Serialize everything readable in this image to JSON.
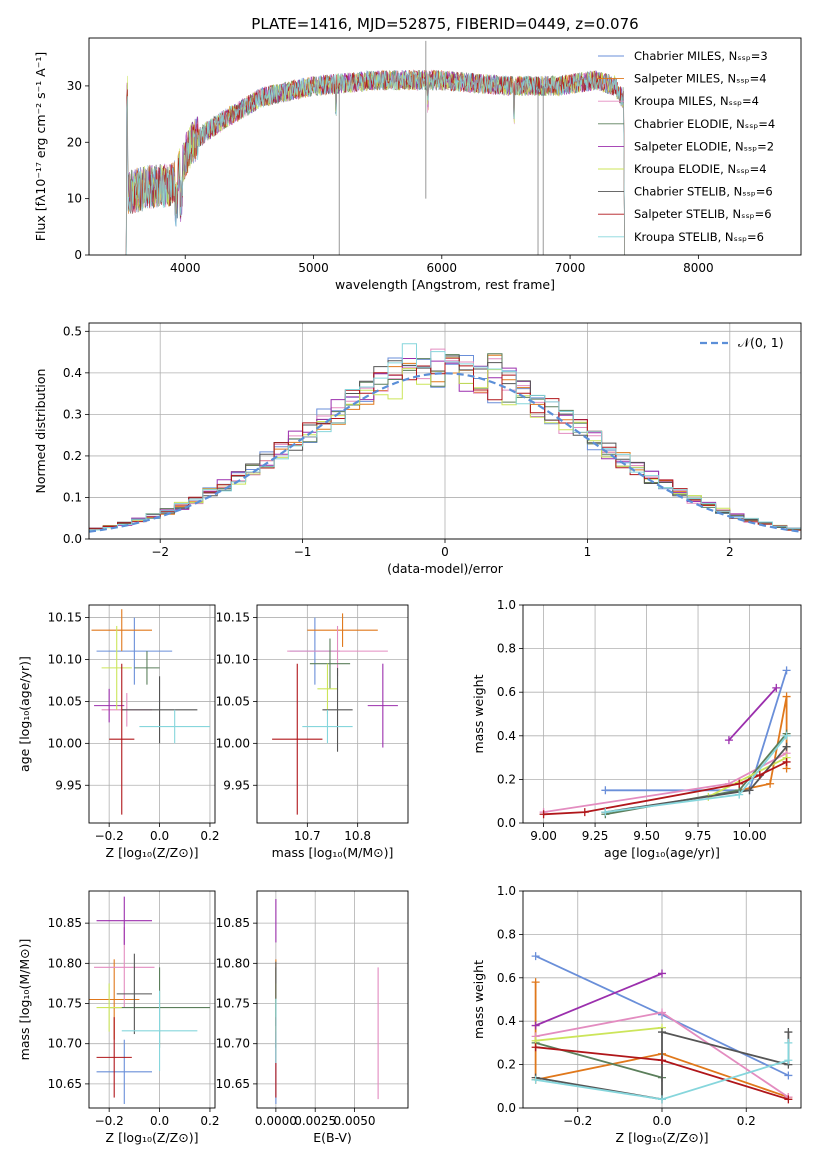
{
  "palette": [
    "#6a8fd9",
    "#e0781b",
    "#e38cc0",
    "#5b7f5b",
    "#9b2fad",
    "#cce55a",
    "#555555",
    "#b0161a",
    "#86d6dc"
  ],
  "chart_data": [
    {
      "id": "spectrum",
      "type": "line",
      "title": "PLATE=1416, MJD=52875, FIBERID=0449, z=0.076",
      "xlabel": "wavelength [Angstrom, rest frame]",
      "ylabel": "Flux [fλ10⁻¹⁷ erg cm⁻² s⁻¹ A⁻¹]",
      "xlim": [
        3250,
        8800
      ],
      "ylim": [
        0,
        38.5
      ],
      "xticks": [
        "4000",
        "5000",
        "6000",
        "7000",
        "8000"
      ],
      "yticks": [
        "0",
        "10",
        "20",
        "30"
      ],
      "legend_position": "upper-right",
      "legend": [
        "Chabrier MILES, Nₛₛₚ=3",
        "Salpeter MILES, Nₛₛₚ=4",
        "Kroupa MILES, Nₛₛₚ=4",
        "Chabrier ELODIE, Nₛₛₚ=4",
        "Salpeter ELODIE, Nₛₛₚ=2",
        "Kroupa ELODIE, Nₛₛₚ=4",
        "Chabrier STELIB, Nₛₛₚ=6",
        "Salpeter STELIB, Nₛₛₚ=6",
        "Kroupa STELIB, Nₛₛₚ=6"
      ],
      "continuum": [
        [
          3550,
          11
        ],
        [
          3700,
          12
        ],
        [
          3900,
          12.5
        ],
        [
          4050,
          20
        ],
        [
          4300,
          24
        ],
        [
          4600,
          28
        ],
        [
          5000,
          30
        ],
        [
          5500,
          31
        ],
        [
          6000,
          31
        ],
        [
          6500,
          30
        ],
        [
          6900,
          30
        ],
        [
          7200,
          31
        ],
        [
          7350,
          30
        ],
        [
          7400,
          28
        ]
      ]
    },
    {
      "id": "residuals",
      "type": "histogram",
      "xlabel": "(data-model)/error",
      "ylabel": "Normed distribution",
      "xlim": [
        -2.5,
        2.5
      ],
      "ylim": [
        0,
        0.52
      ],
      "xticks": [
        "−2",
        "−1",
        "0",
        "1",
        "2"
      ],
      "yticks": [
        "0.0",
        "0.1",
        "0.2",
        "0.3",
        "0.4",
        "0.5"
      ],
      "legend": [
        "𝒩(0, 1)"
      ],
      "legend_position": "upper-right",
      "bin_width": 0.1
    },
    {
      "id": "age_vs_Z",
      "type": "errorbar",
      "xlabel": "Z [log₁₀(Z/Z⊙)]",
      "ylabel": "age  [log₁₀(age/yr)]",
      "xlim": [
        -0.28,
        0.22
      ],
      "ylim": [
        9.905,
        10.165
      ],
      "xticks": [
        "−0.2",
        "0.0",
        "0.2"
      ],
      "yticks": [
        "9.95",
        "10.00",
        "10.05",
        "10.10",
        "10.15"
      ],
      "points": [
        {
          "x": -0.1,
          "y": 10.11,
          "xerr": 0.15,
          "yerr": 0.04
        },
        {
          "x": -0.15,
          "y": 10.135,
          "xerr": 0.12,
          "yerr": 0.025
        },
        {
          "x": -0.13,
          "y": 10.04,
          "xerr": 0.1,
          "yerr": 0.02
        },
        {
          "x": -0.05,
          "y": 10.09,
          "xerr": 0.05,
          "yerr": 0.02
        },
        {
          "x": -0.2,
          "y": 10.045,
          "xerr": 0.06,
          "yerr": 0.02
        },
        {
          "x": -0.17,
          "y": 10.09,
          "xerr": 0.06,
          "yerr": 0.05
        },
        {
          "x": 0.0,
          "y": 10.04,
          "xerr": 0.15,
          "yerr": 0.04
        },
        {
          "x": -0.15,
          "y": 10.005,
          "xerr": 0.05,
          "yerr": 0.09
        },
        {
          "x": 0.06,
          "y": 10.02,
          "xerr": 0.14,
          "yerr": 0.02
        }
      ]
    },
    {
      "id": "age_vs_mass",
      "type": "errorbar",
      "xlabel": "mass [log₁₀(M/M⊙)]",
      "ylabel": "",
      "xlim": [
        10.6,
        10.9
      ],
      "ylim": [
        9.905,
        10.165
      ],
      "xticks": [
        "10.7",
        "10.8"
      ],
      "yticks": [
        "9.95",
        "10.00",
        "10.05",
        "10.10",
        "10.15"
      ],
      "points": [
        {
          "x": 10.715,
          "y": 10.11,
          "xerr": 0.05,
          "yerr": 0.04
        },
        {
          "x": 10.77,
          "y": 10.135,
          "xerr": 0.07,
          "yerr": 0.02
        },
        {
          "x": 10.76,
          "y": 10.11,
          "xerr": 0.1,
          "yerr": 0.03
        },
        {
          "x": 10.745,
          "y": 10.095,
          "xerr": 0.04,
          "yerr": 0.03
        },
        {
          "x": 10.85,
          "y": 10.045,
          "xerr": 0.03,
          "yerr": 0.05
        },
        {
          "x": 10.74,
          "y": 10.065,
          "xerr": 0.02,
          "yerr": 0.03
        },
        {
          "x": 10.76,
          "y": 10.04,
          "xerr": 0.03,
          "yerr": 0.05
        },
        {
          "x": 10.68,
          "y": 10.005,
          "xerr": 0.05,
          "yerr": 0.09
        },
        {
          "x": 10.74,
          "y": 10.02,
          "xerr": 0.05,
          "yerr": 0.02
        }
      ]
    },
    {
      "id": "mass_weight_vs_age",
      "type": "line",
      "xlabel": "age  [log₁₀(age/yr)]",
      "ylabel": "mass weight",
      "xlim": [
        8.9,
        10.25
      ],
      "ylim": [
        0,
        1.0
      ],
      "xticks": [
        "9.00",
        "9.25",
        "9.50",
        "9.75",
        "10.00"
      ],
      "yticks": [
        "0.0",
        "0.2",
        "0.4",
        "0.6",
        "0.8",
        "1.0"
      ],
      "series": [
        {
          "x": [
            9.3,
            10.0,
            10.18
          ],
          "y": [
            0.15,
            0.15,
            0.7
          ]
        },
        {
          "x": [
            9.95,
            10.1,
            10.18,
            10.18
          ],
          "y": [
            0.15,
            0.18,
            0.58,
            0.25
          ]
        },
        {
          "x": [
            9.0,
            9.9,
            10.18
          ],
          "y": [
            0.05,
            0.18,
            0.32
          ]
        },
        {
          "x": [
            9.3,
            9.95,
            10.18
          ],
          "y": [
            0.04,
            0.15,
            0.41
          ]
        },
        {
          "x": [
            9.9,
            10.13
          ],
          "y": [
            0.38,
            0.62
          ]
        },
        {
          "x": [
            9.8,
            10.18
          ],
          "y": [
            0.12,
            0.3
          ]
        },
        {
          "x": [
            9.3,
            10.0,
            10.18
          ],
          "y": [
            0.05,
            0.15,
            0.35
          ]
        },
        {
          "x": [
            9.0,
            9.2,
            9.95,
            10.05,
            10.18
          ],
          "y": [
            0.04,
            0.05,
            0.18,
            0.22,
            0.28
          ]
        },
        {
          "x": [
            9.3,
            9.95,
            10.18
          ],
          "y": [
            0.05,
            0.13,
            0.4
          ]
        }
      ]
    },
    {
      "id": "mass_vs_Z",
      "type": "errorbar",
      "xlabel": "Z [log₁₀(Z/Z⊙)]",
      "ylabel": "mass [log₁₀(M/M⊙)]",
      "xlim": [
        -0.28,
        0.22
      ],
      "ylim": [
        10.62,
        10.89
      ],
      "xticks": [
        "−0.2",
        "0.0",
        "0.2"
      ],
      "yticks": [
        "10.65",
        "10.70",
        "10.75",
        "10.80",
        "10.85"
      ],
      "points": [
        {
          "x": -0.14,
          "y": 10.665,
          "xerr": 0.11,
          "yerr": 0.04
        },
        {
          "x": -0.18,
          "y": 10.755,
          "xerr": 0.1,
          "yerr": 0.05
        },
        {
          "x": -0.14,
          "y": 10.795,
          "xerr": 0.12,
          "yerr": 0.05
        },
        {
          "x": 0.0,
          "y": 10.745,
          "xerr": 0.2,
          "yerr": 0.05
        },
        {
          "x": -0.14,
          "y": 10.853,
          "xerr": 0.11,
          "yerr": 0.03
        },
        {
          "x": -0.2,
          "y": 10.745,
          "xerr": 0.05,
          "yerr": 0.03
        },
        {
          "x": -0.1,
          "y": 10.762,
          "xerr": 0.07,
          "yerr": 0.05
        },
        {
          "x": -0.18,
          "y": 10.683,
          "xerr": 0.07,
          "yerr": 0.05
        },
        {
          "x": 0.0,
          "y": 10.716,
          "xerr": 0.15,
          "yerr": 0.05
        }
      ]
    },
    {
      "id": "mass_vs_ebv",
      "type": "errorbar",
      "xlabel": "E(B-V)",
      "ylabel": "",
      "xlim": [
        -0.0012,
        0.0084
      ],
      "ylim": [
        10.62,
        10.89
      ],
      "xticks": [
        "0.0000",
        "0.0025",
        "0.0050"
      ],
      "yticks": [
        "10.65",
        "10.70",
        "10.75",
        "10.80",
        "10.85"
      ],
      "points": [
        {
          "x": 0.0,
          "y": 10.665,
          "xerr": 0,
          "yerr": 0.04
        },
        {
          "x": 0.0,
          "y": 10.755,
          "xerr": 0,
          "yerr": 0.05
        },
        {
          "x": 0.0065,
          "y": 10.713,
          "xerr": 0,
          "yerr": 0.082
        },
        {
          "x": 0.0,
          "y": 10.745,
          "xerr": 0,
          "yerr": 0.05
        },
        {
          "x": 0.0,
          "y": 10.853,
          "xerr": 0,
          "yerr": 0.027
        },
        {
          "x": 0.0,
          "y": 10.745,
          "xerr": 0,
          "yerr": 0.03
        },
        {
          "x": 0.0,
          "y": 10.762,
          "xerr": 0,
          "yerr": 0.04
        },
        {
          "x": 0.0,
          "y": 10.683,
          "xerr": 0,
          "yerr": 0.05
        },
        {
          "x": 0.0,
          "y": 10.716,
          "xerr": 0,
          "yerr": 0.04
        }
      ]
    },
    {
      "id": "mass_weight_vs_Z",
      "type": "line",
      "xlabel": "Z [log₁₀(Z/Z⊙)]",
      "ylabel": "mass weight",
      "xlim": [
        -0.33,
        0.33
      ],
      "ylim": [
        0,
        1.0
      ],
      "xticks": [
        "−0.2",
        "0.0",
        "0.2"
      ],
      "yticks": [
        "0.0",
        "0.2",
        "0.4",
        "0.6",
        "0.8",
        "1.0"
      ],
      "series": [
        {
          "x": [
            -0.3,
            0.0,
            0.3
          ],
          "y": [
            0.7,
            0.43,
            0.15
          ]
        },
        {
          "x": [
            -0.3,
            -0.3,
            0.0,
            0.3
          ],
          "y": [
            0.58,
            0.13,
            0.25,
            0.05
          ]
        },
        {
          "x": [
            -0.3,
            0.0,
            0.3
          ],
          "y": [
            0.33,
            0.44,
            0.05
          ]
        },
        {
          "x": [
            -0.3,
            0.0
          ],
          "y": [
            0.3,
            0.14
          ]
        },
        {
          "x": [
            -0.3,
            0.0
          ],
          "y": [
            0.38,
            0.62
          ]
        },
        {
          "x": [
            -0.3,
            0.0
          ],
          "y": [
            0.31,
            0.37
          ]
        },
        {
          "x": [
            -0.3,
            0.0,
            0.0,
            0.3,
            0.3
          ],
          "y": [
            0.14,
            0.04,
            0.35,
            0.2,
            0.35
          ]
        },
        {
          "x": [
            -0.3,
            0.0,
            0.3
          ],
          "y": [
            0.28,
            0.22,
            0.04
          ]
        },
        {
          "x": [
            -0.3,
            0.0,
            0.3,
            0.3
          ],
          "y": [
            0.13,
            0.04,
            0.22,
            0.3
          ]
        }
      ]
    }
  ]
}
